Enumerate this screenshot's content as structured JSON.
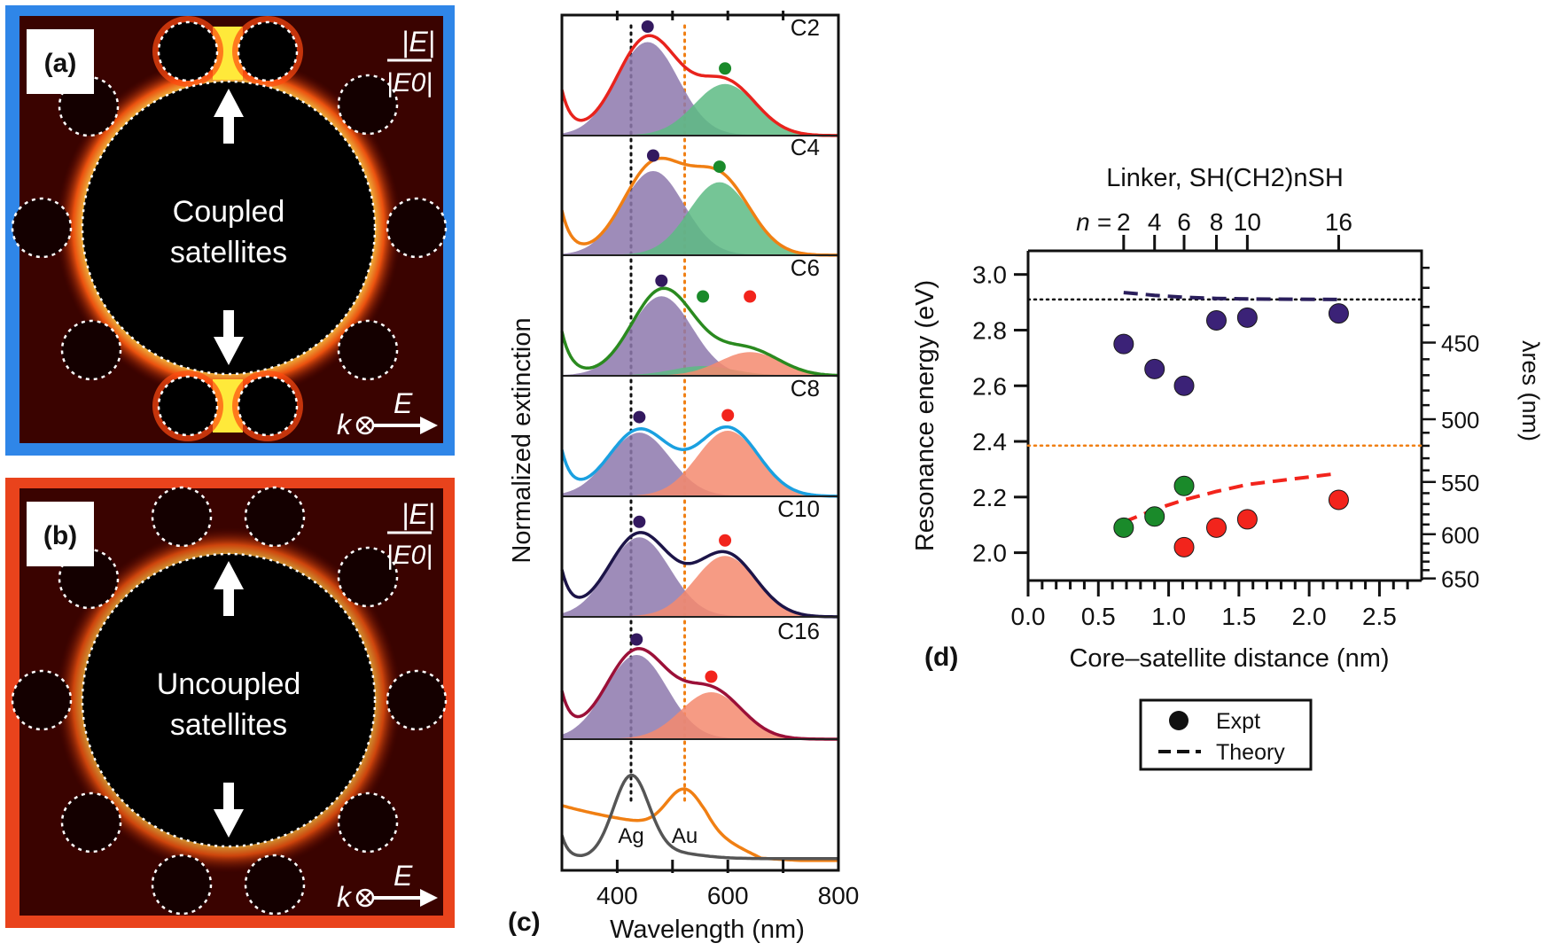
{
  "panel_a": {
    "label": "(a)",
    "caption_line1": "Coupled",
    "caption_line2": "satellites",
    "field_numerator": "|E|",
    "field_denominator": "|E0|",
    "k_label": "k",
    "e_label": "E",
    "border_color": "#2f86e8"
  },
  "panel_b": {
    "label": "(b)",
    "caption_line1": "Uncoupled",
    "caption_line2": "satellites",
    "field_numerator": "|E|",
    "field_denominator": "|E0|",
    "k_label": "k",
    "e_label": "E",
    "border_color": "#e9431c"
  },
  "chart_data": [
    {
      "panel": "(c)",
      "type": "area",
      "xlabel": "Wavelength (nm)",
      "ylabel": "Normalized extinction",
      "xlim": [
        300,
        800
      ],
      "xticks": [
        400,
        600,
        800
      ],
      "reference_lines": [
        {
          "x": 425,
          "color": "#111111",
          "style": "dotted"
        },
        {
          "x": 522,
          "color": "#f07f13",
          "style": "dotted"
        }
      ],
      "spectra": [
        {
          "name": "C2",
          "line_color": "#e8231d",
          "peaks": [
            {
              "center": 455,
              "amplitude": 1.0,
              "color": "#8e79ad",
              "dot": "#33195f"
            },
            {
              "center": 595,
              "amplitude": 0.55,
              "color": "#5dbb84",
              "dot": "#1a8a2a"
            }
          ]
        },
        {
          "name": "C4",
          "line_color": "#f07f13",
          "peaks": [
            {
              "center": 465,
              "amplitude": 0.9,
              "color": "#8e79ad",
              "dot": "#33195f"
            },
            {
              "center": 585,
              "amplitude": 0.78,
              "color": "#5dbb84",
              "dot": "#1a8a2a"
            }
          ]
        },
        {
          "name": "C6",
          "line_color": "#2a8a1f",
          "peaks": [
            {
              "center": 480,
              "amplitude": 0.85,
              "color": "#8e79ad",
              "dot": "#33195f"
            },
            {
              "center": 555,
              "amplitude": 0.1,
              "color": "#5dbb84",
              "dot": "#1a8a2a"
            },
            {
              "center": 640,
              "amplitude": 0.25,
              "color": "#f58a6f",
              "dot": "#f2241c"
            }
          ]
        },
        {
          "name": "C8",
          "line_color": "#1aa0e0",
          "peaks": [
            {
              "center": 440,
              "amplitude": 0.68,
              "color": "#8e79ad",
              "dot": "#33195f"
            },
            {
              "center": 600,
              "amplitude": 0.7,
              "color": "#f58a6f",
              "dot": "#f2241c"
            }
          ]
        },
        {
          "name": "C10",
          "line_color": "#1c1448",
          "peaks": [
            {
              "center": 440,
              "amplitude": 0.85,
              "color": "#8e79ad",
              "dot": "#33195f"
            },
            {
              "center": 595,
              "amplitude": 0.65,
              "color": "#f58a6f",
              "dot": "#f2241c"
            }
          ]
        },
        {
          "name": "C16",
          "line_color": "#9b1038",
          "peaks": [
            {
              "center": 435,
              "amplitude": 0.9,
              "color": "#8e79ad",
              "dot": "#33195f"
            },
            {
              "center": 570,
              "amplitude": 0.5,
              "color": "#f58a6f",
              "dot": "#f2241c"
            }
          ]
        }
      ],
      "reference_spectra": [
        {
          "name": "Ag",
          "peak": 425,
          "color": "#555555"
        },
        {
          "name": "Au",
          "peak": 522,
          "color": "#f07f13"
        }
      ]
    },
    {
      "panel": "(d)",
      "type": "scatter",
      "xlabel": "Core–satellite distance (nm)",
      "ylabel": "Resonance energy (eV)",
      "y2label": "λres (nm)",
      "top_axis_title": "Linker, SH(CH2)nSH",
      "top_axis_prefix": "n =",
      "top_ticks": [
        {
          "n": "2",
          "x": 0.68
        },
        {
          "n": "4",
          "x": 0.9
        },
        {
          "n": "6",
          "x": 1.11
        },
        {
          "n": "8",
          "x": 1.34
        },
        {
          "n": "10",
          "x": 1.56
        },
        {
          "n": "16",
          "x": 2.21
        }
      ],
      "xlim": [
        0.0,
        2.8
      ],
      "ylim": [
        1.9,
        3.085
      ],
      "xticks": [
        "0.0",
        "0.5",
        "1.0",
        "1.5",
        "2.0",
        "2.5"
      ],
      "yticks": [
        "2.0",
        "2.2",
        "2.4",
        "2.6",
        "2.8",
        "3.0"
      ],
      "y2ticks": [
        "450",
        "500",
        "550",
        "600",
        "650"
      ],
      "reference_lines": [
        {
          "y": 2.91,
          "color": "#111111",
          "style": "dotted"
        },
        {
          "y": 2.385,
          "color": "#f07f13",
          "style": "dotted"
        }
      ],
      "series": [
        {
          "kind": "expt",
          "color": "#3b2277",
          "x": [
            0.68,
            0.9,
            1.11,
            1.34,
            1.56,
            2.21
          ],
          "y": [
            2.75,
            2.66,
            2.6,
            2.835,
            2.845,
            2.86
          ]
        },
        {
          "kind": "expt",
          "color": "#1a8a2a",
          "x": [
            0.68,
            0.9,
            1.11
          ],
          "y": [
            2.09,
            2.13,
            2.24
          ]
        },
        {
          "kind": "expt",
          "color": "#f2241c",
          "x": [
            1.11,
            1.34,
            1.56,
            2.21
          ],
          "y": [
            2.02,
            2.09,
            2.12,
            2.19
          ]
        },
        {
          "kind": "theory",
          "color": "#2a1e5c",
          "x": [
            0.68,
            0.9,
            1.11,
            1.34,
            1.56,
            2.21
          ],
          "y": [
            2.935,
            2.925,
            2.918,
            2.914,
            2.912,
            2.91
          ]
        },
        {
          "kind": "theory",
          "color": "#f2241c",
          "x": [
            0.68,
            0.9,
            1.11,
            1.34,
            1.56,
            2.21
          ],
          "y": [
            2.11,
            2.155,
            2.19,
            2.22,
            2.245,
            2.285
          ]
        }
      ],
      "legend": {
        "expt": "Expt",
        "theory": "Theory"
      }
    }
  ]
}
